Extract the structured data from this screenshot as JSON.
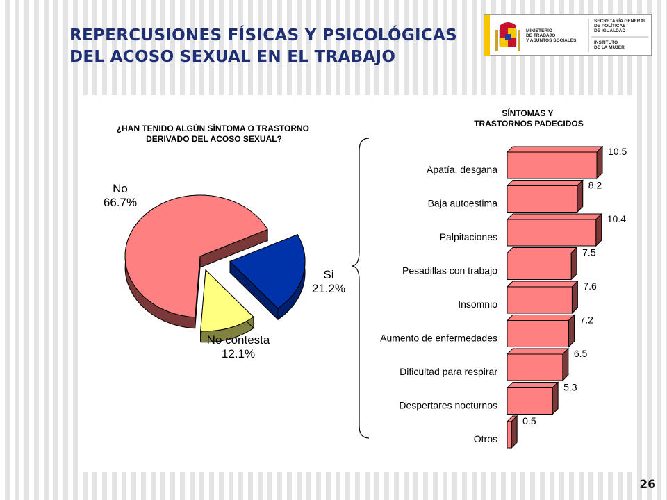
{
  "slide": {
    "title": "REPERCUSIONES FÍSICAS Y PSICOLÓGICAS DEL ACOSO SEXUAL EN EL TRABAJO",
    "page_number": "26"
  },
  "logo": {
    "ministry": "MINISTERIO\nDE TRABAJO\nY ASUNTOS SOCIALES",
    "secretariat": "SECRETARÍA GENERAL\nDE POLÍTICAS\nDE IGUALDAD",
    "institute": "INSTITUTO\nDE LA MUJER",
    "colors": {
      "red": "#c8102e",
      "yellow": "#f6c700"
    }
  },
  "chart_data": [
    {
      "type": "pie",
      "title": "¿HAN TENIDO ALGÚN SÍNTOMA O TRASTORNO DERIVADO DEL ACOSO SEXUAL?",
      "slices": [
        {
          "label": "No",
          "value": 66.7,
          "value_label": "66.7%",
          "color": "#ff8080",
          "side_color": "#7a3838"
        },
        {
          "label": "Si",
          "value": 21.2,
          "value_label": "21.2%",
          "color": "#0033aa",
          "side_color": "#00206b"
        },
        {
          "label": "No contesta",
          "value": 12.1,
          "value_label": "12.1%",
          "color": "#ffff80",
          "side_color": "#828240"
        }
      ],
      "style": "3d-exploded"
    },
    {
      "type": "bar",
      "orientation": "horizontal",
      "title": "SÍNTOMAS Y TRASTORNOS PADECIDOS",
      "categories": [
        "Apatía, desgana",
        "Baja autoestima",
        "Palpitaciones",
        "Pesadillas con trabajo",
        "Insomnio",
        "Aumento de enfermedades",
        "Dificultad para respirar",
        "Despertares nocturnos",
        "Otros"
      ],
      "values": [
        10.5,
        8.2,
        10.4,
        7.5,
        7.6,
        7.2,
        6.5,
        5.3,
        0.5
      ],
      "value_labels": [
        "10.5",
        "8.2",
        "10.4",
        "7.5",
        "7.6",
        "7.2",
        "6.5",
        "5.3",
        "0.5"
      ],
      "xlim": [
        0,
        10.5
      ],
      "bar_color": "#ff8080",
      "bar_side_color": "#7a3838",
      "style": "3d"
    }
  ]
}
